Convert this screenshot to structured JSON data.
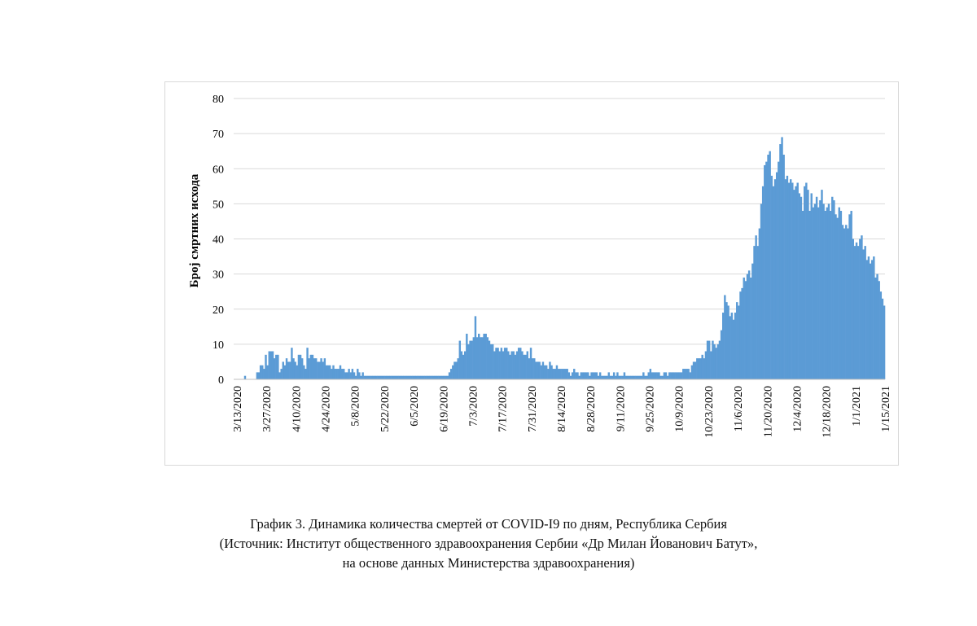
{
  "chart_data": {
    "type": "bar",
    "ylabel": "Број смртних исхода",
    "xlabel": "",
    "ylim": [
      0,
      80
    ],
    "yticks": [
      0,
      10,
      20,
      30,
      40,
      50,
      60,
      70,
      80
    ],
    "grid": "horizontal",
    "legend": "none",
    "bar_color": "#5b9bd5",
    "x_tick_labels": [
      "3/13/2020",
      "3/27/2020",
      "4/10/2020",
      "4/24/2020",
      "5/8/2020",
      "5/22/2020",
      "6/5/2020",
      "6/19/2020",
      "7/3/2020",
      "7/17/2020",
      "7/31/2020",
      "8/14/2020",
      "8/28/2020",
      "9/11/2020",
      "9/25/2020",
      "10/9/2020",
      "10/23/2020",
      "11/6/2020",
      "11/20/2020",
      "12/4/2020",
      "12/18/2020",
      "1/1/2021",
      "1/15/2021"
    ],
    "x_start": "2020-03-13",
    "x_end": "2021-01-15",
    "values": [
      0,
      0,
      0,
      0,
      0,
      0,
      1,
      0,
      0,
      0,
      0,
      0,
      0,
      2,
      2,
      4,
      4,
      3,
      7,
      4,
      8,
      8,
      8,
      6,
      7,
      7,
      2,
      3,
      5,
      4,
      6,
      5,
      5,
      9,
      6,
      5,
      4,
      7,
      7,
      6,
      4,
      3,
      9,
      6,
      7,
      7,
      6,
      6,
      5,
      5,
      6,
      5,
      6,
      4,
      4,
      4,
      3,
      4,
      3,
      3,
      3,
      4,
      3,
      3,
      2,
      2,
      3,
      2,
      3,
      2,
      1,
      3,
      2,
      1,
      2,
      1,
      1,
      1,
      1,
      1,
      1,
      1,
      1,
      1,
      1,
      1,
      1,
      1,
      1,
      1,
      1,
      1,
      1,
      1,
      1,
      1,
      1,
      1,
      1,
      1,
      1,
      1,
      1,
      1,
      1,
      1,
      1,
      1,
      1,
      1,
      1,
      1,
      1,
      1,
      1,
      1,
      1,
      1,
      1,
      1,
      1,
      1,
      1,
      1,
      2,
      3,
      4,
      5,
      5,
      6,
      11,
      8,
      7,
      8,
      13,
      10,
      11,
      11,
      12,
      18,
      12,
      13,
      12,
      12,
      13,
      13,
      12,
      11,
      10,
      10,
      8,
      9,
      9,
      8,
      9,
      8,
      9,
      9,
      8,
      7,
      8,
      8,
      7,
      8,
      9,
      9,
      8,
      7,
      7,
      8,
      6,
      9,
      6,
      6,
      5,
      5,
      5,
      4,
      5,
      4,
      4,
      3,
      5,
      4,
      3,
      3,
      4,
      3,
      3,
      3,
      3,
      3,
      3,
      2,
      1,
      2,
      3,
      2,
      2,
      1,
      2,
      2,
      2,
      2,
      2,
      1,
      2,
      2,
      2,
      2,
      1,
      2,
      1,
      1,
      1,
      1,
      2,
      1,
      1,
      2,
      1,
      2,
      1,
      1,
      1,
      2,
      1,
      1,
      1,
      1,
      1,
      1,
      1,
      1,
      1,
      1,
      2,
      1,
      1,
      2,
      3,
      2,
      2,
      2,
      2,
      2,
      1,
      1,
      2,
      2,
      1,
      2,
      2,
      2,
      2,
      2,
      2,
      2,
      2,
      3,
      3,
      3,
      3,
      2,
      4,
      5,
      5,
      6,
      6,
      6,
      7,
      6,
      8,
      11,
      11,
      8,
      11,
      10,
      9,
      10,
      11,
      14,
      19,
      24,
      22,
      21,
      18,
      19,
      17,
      19,
      22,
      21,
      25,
      26,
      29,
      28,
      30,
      31,
      29,
      33,
      38,
      41,
      38,
      43,
      50,
      55,
      61,
      62,
      64,
      65,
      58,
      55,
      57,
      59,
      62,
      67,
      69,
      64,
      57,
      58,
      56,
      57,
      56,
      54,
      55,
      56,
      53,
      52,
      48,
      55,
      56,
      54,
      48,
      53,
      49,
      50,
      52,
      49,
      51,
      54,
      50,
      48,
      49,
      50,
      48,
      52,
      51,
      47,
      46,
      49,
      48,
      44,
      43,
      44,
      43,
      47,
      48,
      40,
      38,
      39,
      38,
      40,
      41,
      37,
      38,
      34,
      35,
      33,
      34,
      35,
      29,
      30,
      28,
      25,
      23,
      21
    ]
  },
  "caption": {
    "line1": "График 3. Динамика количества смертей от COVID-I9 по дням, Республика Сербия",
    "line2": "(Источник: Институт общественного здравоохранения Сербии «Др Милан Йованович Батут»,",
    "line3": "на основе данных Министерства здравоохранения)"
  }
}
